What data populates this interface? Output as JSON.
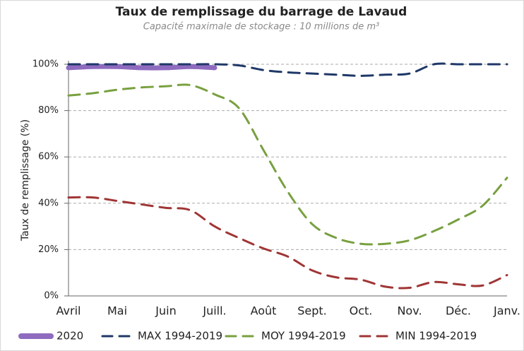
{
  "chart_data": {
    "type": "line",
    "title": "Taux de remplissage du barrage de  Lavaud",
    "subtitle": "Capacité maximale de stockage :  10 millions de m³",
    "y_label": "Taux de remplissage (%)",
    "categories": [
      "Avril",
      null,
      "Mai",
      null,
      "Juin",
      null,
      "Juill.",
      null,
      "Août",
      null,
      "Sept.",
      null,
      "Oct.",
      null,
      "Nov.",
      null,
      "Déc.",
      null,
      "Janv."
    ],
    "series": [
      {
        "name": "2020",
        "color": "#8e6bbf",
        "dash": false,
        "width": 7,
        "values": [
          98.5,
          99,
          99,
          98.5,
          98.5,
          99,
          98.5,
          null,
          null,
          null,
          null,
          null,
          null,
          null,
          null,
          null,
          null,
          null,
          null
        ]
      },
      {
        "name": "MAX 1994-2019",
        "color": "#1f3868",
        "dash": true,
        "width": 3,
        "values": [
          100,
          100,
          100,
          100,
          100,
          100,
          100,
          99.5,
          97.5,
          96.5,
          96,
          95.5,
          95,
          95.5,
          96,
          100,
          100,
          100,
          100
        ]
      },
      {
        "name": "MOY 1994-2019",
        "color": "#78a040",
        "dash": true,
        "width": 3,
        "values": [
          86.5,
          87.5,
          89,
          90,
          90.5,
          91,
          87,
          81,
          63,
          45,
          31,
          25,
          22.5,
          22.5,
          24,
          28,
          33,
          39,
          51
        ]
      },
      {
        "name": "MIN 1994-2019",
        "color": "#a03535",
        "dash": true,
        "width": 3,
        "values": [
          42.5,
          42.5,
          41,
          39.5,
          38,
          37,
          30,
          25,
          20.5,
          17,
          11,
          8,
          7,
          4,
          3.5,
          6,
          5,
          4.5,
          9
        ]
      }
    ],
    "ylim": [
      0,
      100
    ],
    "yticks": [
      {
        "value": 0,
        "label": "0%"
      },
      {
        "value": 20,
        "label": "20%"
      },
      {
        "value": 40,
        "label": "40%"
      },
      {
        "value": 60,
        "label": "60%"
      },
      {
        "value": 80,
        "label": "80%"
      },
      {
        "value": 100,
        "label": "100%"
      }
    ],
    "grid": true,
    "legend": "bottom"
  }
}
